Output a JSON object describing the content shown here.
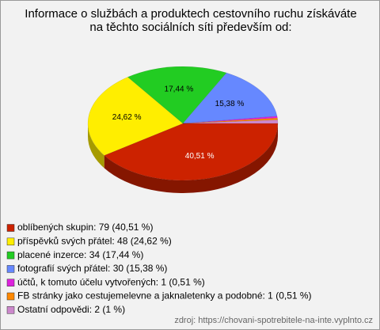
{
  "chart_data": {
    "type": "pie",
    "title": "Informace o službách a produktech cestovního ruchu získáváte na těchto sociálních síti především od:",
    "categories": [
      "oblíbených skupin: 79 (40,51 %)",
      "příspěvků svých přátel: 48 (24,62 %)",
      "placené inzerce: 34 (17,44 %)",
      "fotografií svých přátel: 30 (15,38 %)",
      "účtů, k tomuto účelu vytvořených: 1 (0,51 %)",
      "FB stránky jako cestujemelevne a jaknaletenky a podobné: 1 (0,51 %)",
      "Ostatní odpovědi: 2 (1 %)"
    ],
    "values": [
      40.51,
      24.62,
      17.44,
      15.38,
      0.51,
      0.51,
      1
    ],
    "value_labels": [
      "40,51 %",
      "24,62 %",
      "17,44 %",
      "15,38 %",
      null,
      null,
      null
    ],
    "colors": [
      "#cc2200",
      "#ffee00",
      "#22cc22",
      "#6688ff",
      "#dd22dd",
      "#ff8800",
      "#cc88cc"
    ],
    "source": "zdroj: https://chovani-spotrebitele-na-inte.vyplnto.cz"
  }
}
